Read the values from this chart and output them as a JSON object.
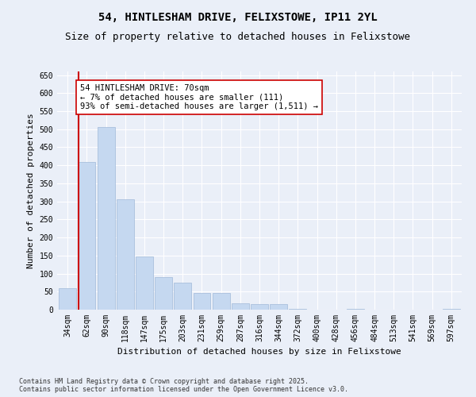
{
  "title": "54, HINTLESHAM DRIVE, FELIXSTOWE, IP11 2YL",
  "subtitle": "Size of property relative to detached houses in Felixstowe",
  "xlabel": "Distribution of detached houses by size in Felixstowe",
  "ylabel": "Number of detached properties",
  "categories": [
    "34sqm",
    "62sqm",
    "90sqm",
    "118sqm",
    "147sqm",
    "175sqm",
    "203sqm",
    "231sqm",
    "259sqm",
    "287sqm",
    "316sqm",
    "344sqm",
    "372sqm",
    "400sqm",
    "428sqm",
    "456sqm",
    "484sqm",
    "513sqm",
    "541sqm",
    "569sqm",
    "597sqm"
  ],
  "values": [
    60,
    410,
    505,
    305,
    147,
    90,
    75,
    47,
    47,
    18,
    15,
    15,
    3,
    0,
    0,
    2,
    0,
    0,
    0,
    0,
    2
  ],
  "bar_color": "#c5d8f0",
  "bar_edge_color": "#a0b8d8",
  "subject_line_color": "#cc0000",
  "annotation_text_line1": "54 HINTLESHAM DRIVE: 70sqm",
  "annotation_text_line2": "← 7% of detached houses are smaller (111)",
  "annotation_text_line3": "93% of semi-detached houses are larger (1,511) →",
  "annotation_box_color": "#ffffff",
  "annotation_box_edge": "#cc0000",
  "ylim": [
    0,
    660
  ],
  "yticks": [
    0,
    50,
    100,
    150,
    200,
    250,
    300,
    350,
    400,
    450,
    500,
    550,
    600,
    650
  ],
  "footer_line1": "Contains HM Land Registry data © Crown copyright and database right 2025.",
  "footer_line2": "Contains public sector information licensed under the Open Government Licence v3.0.",
  "background_color": "#eaeff8",
  "plot_bg_color": "#eaeff8",
  "title_fontsize": 10,
  "subtitle_fontsize": 9,
  "label_fontsize": 8,
  "tick_fontsize": 7,
  "annotation_fontsize": 7.5,
  "footer_fontsize": 6
}
